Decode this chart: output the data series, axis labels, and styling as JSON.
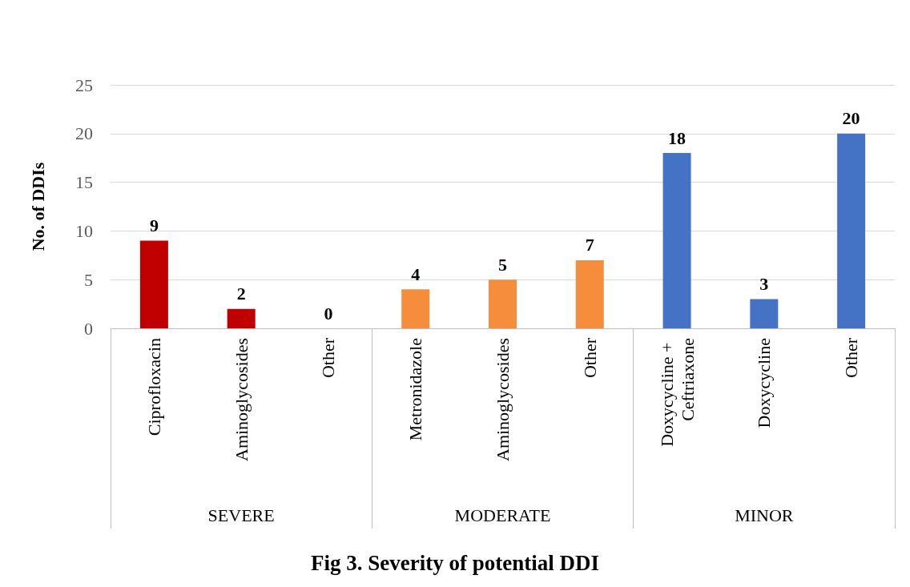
{
  "chart_data": {
    "type": "bar",
    "title": "Fig 3. Severity of potential DDI",
    "ylabel": "No. of DDIs",
    "categories": [
      "Ciprofloxacin",
      "Aminoglycosides",
      "Other",
      "Metronidazole",
      "Aminoglycosides",
      "Other",
      "Doxycycline + Ceftriaxone",
      "Doxycycline",
      "Other"
    ],
    "values": [
      9,
      2,
      0,
      4,
      5,
      7,
      18,
      3,
      20
    ],
    "colors": [
      "#c00000",
      "#c00000",
      "#c00000",
      "#f58d3d",
      "#f58d3d",
      "#f58d3d",
      "#4472c4",
      "#4472c4",
      "#4472c4"
    ],
    "annotations": [
      "SEVERE",
      "MODERATE",
      "MINOR"
    ],
    "ylim": [
      0,
      25
    ],
    "yticks": [
      0,
      5,
      10,
      15,
      20,
      25
    ],
    "grid": "y",
    "data_labels": true
  }
}
